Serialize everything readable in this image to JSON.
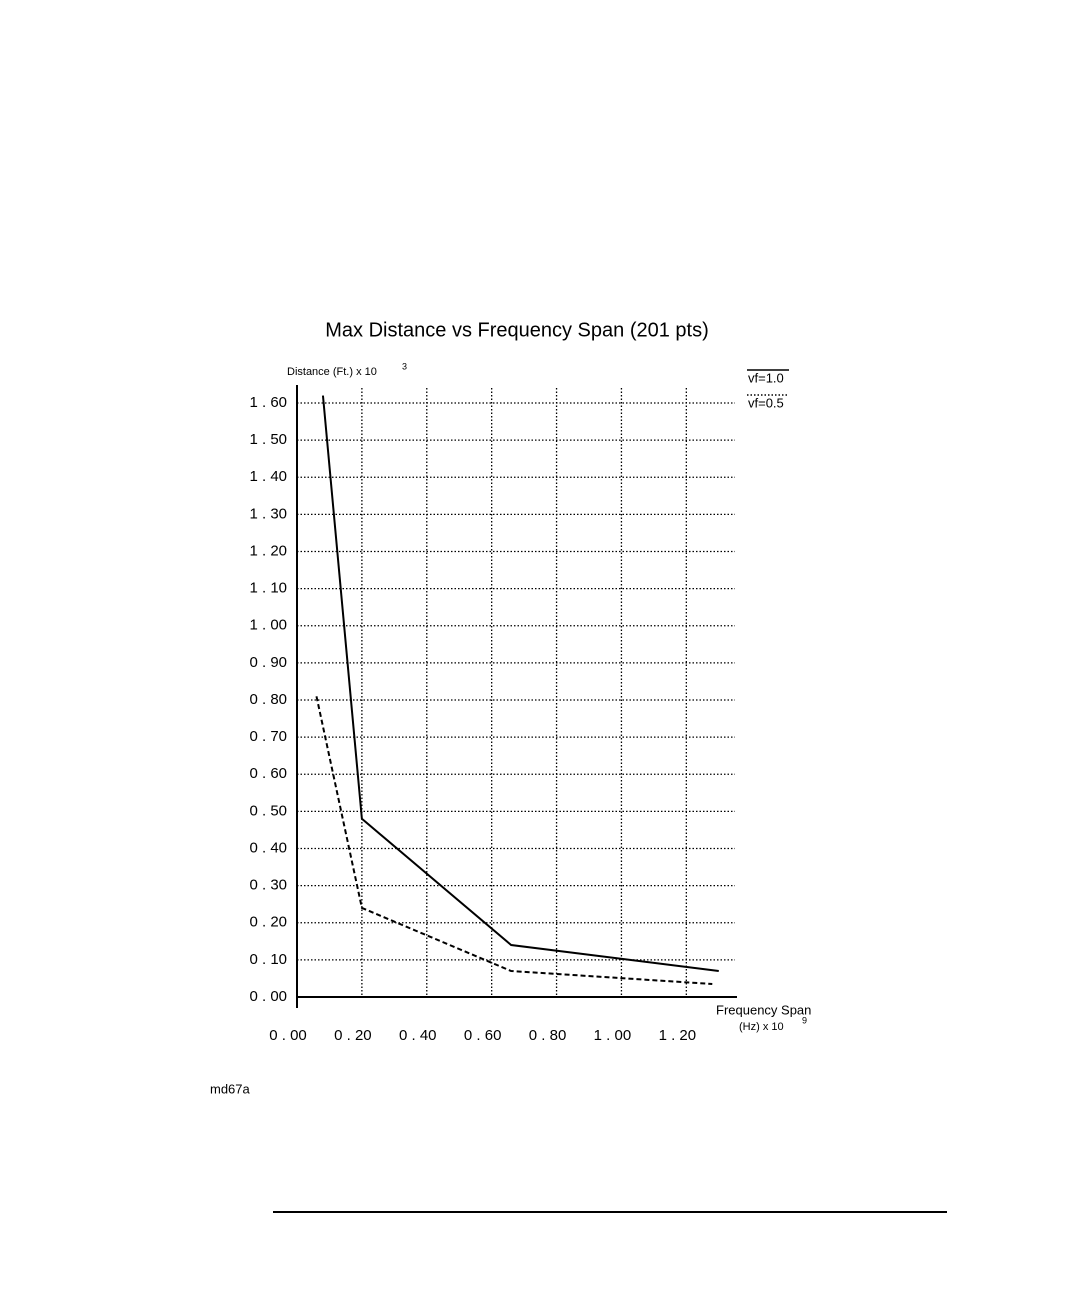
{
  "chart_data": {
    "type": "line",
    "title": "Max  Distance  vs  Frequency  Span  (201 pts)",
    "y_label": "Distance  (Ft.)   x   10",
    "y_label_exponent": "3",
    "x_label": "Frequency Span",
    "x_label_units": "(Hz)   x   10",
    "x_label_exponent": "9",
    "series": [
      {
        "name": "vf=1.0",
        "color": "#000000",
        "line_style": "solid",
        "x": [
          0.08,
          0.2,
          0.66,
          1.3
        ],
        "values": [
          1.62,
          0.48,
          0.14,
          0.07
        ]
      },
      {
        "name": "vf=0.5",
        "color": "#000000",
        "line_style": "dashed",
        "x": [
          0.06,
          0.2,
          0.66,
          1.28
        ],
        "values": [
          0.81,
          0.24,
          0.07,
          0.035
        ]
      }
    ],
    "xlim": [
      0,
      1.35
    ],
    "ylim": [
      0,
      1.6
    ],
    "xticks": [
      {
        "value": 0,
        "label": "0 . 00"
      },
      {
        "value": 0.2,
        "label": "0 . 20"
      },
      {
        "value": 0.4,
        "label": "0 . 40"
      },
      {
        "value": 0.6,
        "label": "0 . 60"
      },
      {
        "value": 0.8,
        "label": "0 . 80"
      },
      {
        "value": 1.0,
        "label": "1 . 00"
      },
      {
        "value": 1.2,
        "label": "1 . 20"
      }
    ],
    "yticks": [
      {
        "value": 0,
        "label": "0 . 00"
      },
      {
        "value": 0.1,
        "label": "0 . 10"
      },
      {
        "value": 0.2,
        "label": "0 . 20"
      },
      {
        "value": 0.3,
        "label": "0 . 30"
      },
      {
        "value": 0.4,
        "label": "0 . 40"
      },
      {
        "value": 0.5,
        "label": "0 . 50"
      },
      {
        "value": 0.6,
        "label": "0 . 60"
      },
      {
        "value": 0.7,
        "label": "0 . 70"
      },
      {
        "value": 0.8,
        "label": "0 . 80"
      },
      {
        "value": 0.9,
        "label": "0 . 90"
      },
      {
        "value": 1.0,
        "label": "1 . 00"
      },
      {
        "value": 1.1,
        "label": "1 . 10"
      },
      {
        "value": 1.2,
        "label": "1 . 20"
      },
      {
        "value": 1.3,
        "label": "1 . 30"
      },
      {
        "value": 1.4,
        "label": "1 . 40"
      },
      {
        "value": 1.5,
        "label": "1 . 50"
      },
      {
        "value": 1.6,
        "label": "1 . 60"
      }
    ],
    "grid": true,
    "legend_position": "top-right"
  },
  "figure_id": "md67a"
}
